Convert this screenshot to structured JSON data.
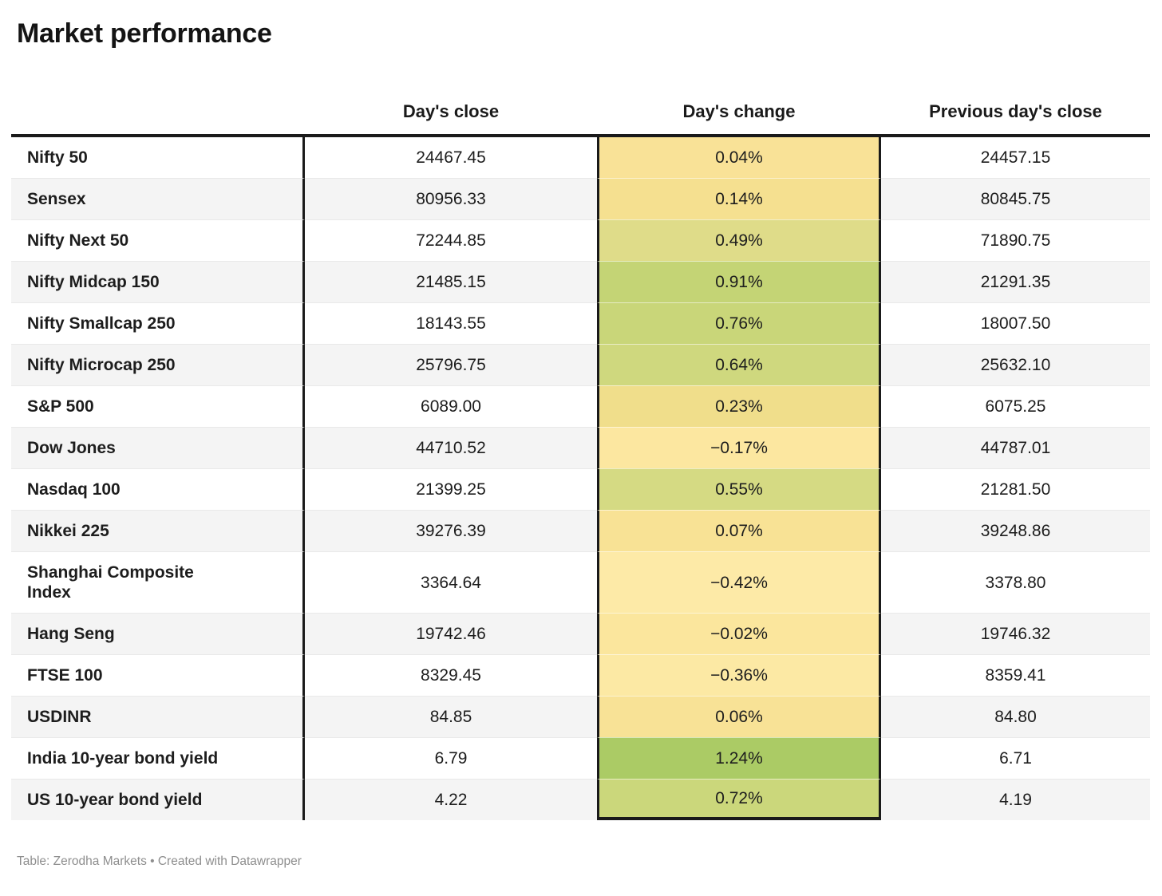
{
  "title": "Market performance",
  "header": {
    "col_label": "",
    "col_close": "Day's close",
    "col_change": "Day's change",
    "col_prev": "Previous day's close"
  },
  "footer": {
    "text": "Table: Zerodha Markets • Created with Datawrapper"
  },
  "colors": {
    "table_border": "#1a1a1a",
    "row_stripe": "#f4f4f4",
    "text": "#1d1d1d",
    "footer_text": "#8e8e8e",
    "scale_min": "#fdeaa7",
    "scale_mid": "#f0de8b",
    "scale_max": "#abcb65"
  },
  "chart_data": {
    "type": "table",
    "title": "Market performance",
    "columns": [
      "",
      "Day's close",
      "Day's change",
      "Previous day's close"
    ],
    "color_scale": {
      "applies_to_column": "Day's change",
      "palette": "yellow-to-green",
      "min_color": "#fdeaa7",
      "max_color": "#abcb65",
      "domain": [
        -0.42,
        1.24
      ]
    },
    "rows": [
      {
        "label": "Nifty 50",
        "close": "24467.45",
        "change": "0.04%",
        "change_value": 0.04,
        "prev": "24457.15",
        "change_bg": "#f9e297"
      },
      {
        "label": "Sensex",
        "close": "80956.33",
        "change": "0.14%",
        "change_value": 0.14,
        "prev": "80845.75",
        "change_bg": "#f5e090"
      },
      {
        "label": "Nifty Next 50",
        "close": "72244.85",
        "change": "0.49%",
        "change_value": 0.49,
        "prev": "71890.75",
        "change_bg": "#dfdc89"
      },
      {
        "label": "Nifty Midcap 150",
        "close": "21485.15",
        "change": "0.91%",
        "change_value": 0.91,
        "prev": "21291.35",
        "change_bg": "#c4d475"
      },
      {
        "label": "Nifty Smallcap 250",
        "close": "18143.55",
        "change": "0.76%",
        "change_value": 0.76,
        "prev": "18007.50",
        "change_bg": "#c9d679"
      },
      {
        "label": "Nifty Microcap 250",
        "close": "25796.75",
        "change": "0.64%",
        "change_value": 0.64,
        "prev": "25632.10",
        "change_bg": "#cfd87e"
      },
      {
        "label": "S&P 500",
        "close": "6089.00",
        "change": "0.23%",
        "change_value": 0.23,
        "prev": "6075.25",
        "change_bg": "#f0de8b"
      },
      {
        "label": "Dow Jones",
        "close": "44710.52",
        "change": "−0.17%",
        "change_value": -0.17,
        "prev": "44787.01",
        "change_bg": "#fce7a0"
      },
      {
        "label": "Nasdaq 100",
        "close": "21399.25",
        "change": "0.55%",
        "change_value": 0.55,
        "prev": "21281.50",
        "change_bg": "#d5da83"
      },
      {
        "label": "Nikkei 225",
        "close": "39276.39",
        "change": "0.07%",
        "change_value": 0.07,
        "prev": "39248.86",
        "change_bg": "#f8e295"
      },
      {
        "label": "Shanghai Composite Index",
        "close": "3364.64",
        "change": "−0.42%",
        "change_value": -0.42,
        "prev": "3378.80",
        "change_bg": "#fdeaa7"
      },
      {
        "label": "Hang Seng",
        "close": "19742.46",
        "change": "−0.02%",
        "change_value": -0.02,
        "prev": "19746.32",
        "change_bg": "#fbe69d"
      },
      {
        "label": "FTSE 100",
        "close": "8329.45",
        "change": "−0.36%",
        "change_value": -0.36,
        "prev": "8359.41",
        "change_bg": "#fce9a4"
      },
      {
        "label": "USDINR",
        "close": "84.85",
        "change": "0.06%",
        "change_value": 0.06,
        "prev": "84.80",
        "change_bg": "#f8e296"
      },
      {
        "label": "India 10-year bond yield",
        "close": "6.79",
        "change": "1.24%",
        "change_value": 1.24,
        "prev": "6.71",
        "change_bg": "#abcb65"
      },
      {
        "label": "US 10-year bond yield",
        "close": "4.22",
        "change": "0.72%",
        "change_value": 0.72,
        "prev": "4.19",
        "change_bg": "#cbd77b"
      }
    ]
  }
}
